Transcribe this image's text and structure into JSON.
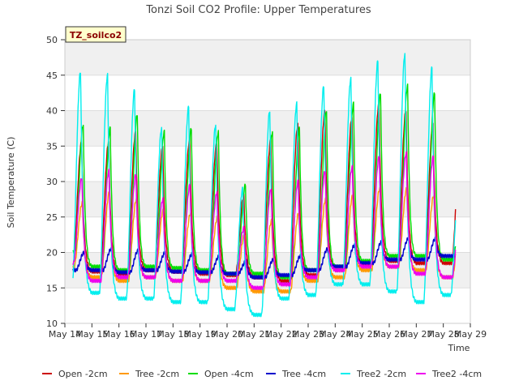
{
  "chart_data": {
    "type": "line",
    "title": "Tonzi Soil CO2 Profile: Upper Temperatures",
    "xlabel": "Time",
    "ylabel": "Soil Temperature (C)",
    "tag": "TZ_soilco2",
    "ylim": [
      10,
      50
    ],
    "yticks": [
      10,
      15,
      20,
      25,
      30,
      35,
      40,
      45,
      50
    ],
    "xlim": [
      14,
      29
    ],
    "xticks": [
      14,
      15,
      16,
      17,
      18,
      19,
      20,
      21,
      22,
      23,
      24,
      25,
      26,
      27,
      28,
      29
    ],
    "xtick_labels": [
      "May 14",
      "May 15",
      "May 16",
      "May 17",
      "May 18",
      "May 19",
      "May 20",
      "May 21",
      "May 22",
      "May 23",
      "May 24",
      "May 25",
      "May 26",
      "May 27",
      "May 28",
      "May 29"
    ],
    "grid": "horizontal bands",
    "legend_position": "bottom",
    "day_starts": [
      14,
      15,
      16,
      17,
      18,
      19,
      20,
      21,
      22,
      23,
      24,
      25,
      26,
      27,
      28
    ],
    "data_start": 14.3,
    "data_end": 28.45,
    "series": [
      {
        "name": "Open -2cm",
        "color": "#cc0000",
        "peak_phase": 0.62,
        "mins": [
          18.5,
          17.3,
          17.0,
          17.5,
          17.3,
          17.0,
          16.8,
          16.5,
          16.0,
          16.8,
          17.5,
          18.3,
          18.8,
          18.5,
          18.5,
          19.5
        ],
        "maxs": [
          35.5,
          35.5,
          37.0,
          35.0,
          36.0,
          35.5,
          28.0,
          36.0,
          38.0,
          40.0,
          39.0,
          41.0,
          40.0,
          38.0,
          34.0
        ]
      },
      {
        "name": "Tree -2cm",
        "color": "#ff9900",
        "peak_phase": 0.65,
        "mins": [
          18.0,
          16.5,
          16.0,
          16.5,
          16.0,
          16.0,
          15.0,
          14.5,
          14.5,
          16.0,
          16.5,
          17.5,
          18.0,
          17.5,
          16.5,
          18.5
        ],
        "maxs": [
          27.0,
          28.5,
          27.5,
          26.0,
          25.5,
          25.0,
          22.5,
          24.5,
          25.5,
          27.5,
          28.0,
          29.0,
          29.0,
          28.0,
          26.0
        ]
      },
      {
        "name": "Open -4cm",
        "color": "#00dd00",
        "peak_phase": 0.68,
        "mins": [
          20.0,
          18.0,
          17.5,
          18.0,
          17.8,
          17.5,
          17.0,
          17.0,
          16.5,
          17.5,
          18.0,
          18.8,
          19.5,
          19.5,
          19.0,
          20.0
        ],
        "maxs": [
          38.0,
          37.5,
          39.5,
          37.0,
          37.5,
          37.0,
          29.5,
          37.0,
          37.5,
          40.0,
          41.0,
          42.5,
          43.5,
          42.5,
          29.0
        ]
      },
      {
        "name": "Tree -4cm",
        "color": "#0000cc",
        "peak_phase": 0.72,
        "mins": [
          17.5,
          17.5,
          17.2,
          17.5,
          17.3,
          17.2,
          17.0,
          16.5,
          16.8,
          17.5,
          18.0,
          18.5,
          19.0,
          19.0,
          19.5,
          19.5
        ],
        "maxs": [
          20.0,
          20.5,
          20.3,
          20.0,
          19.8,
          19.5,
          18.8,
          19.0,
          19.5,
          20.5,
          21.0,
          21.5,
          22.0,
          22.0,
          21.5
        ]
      },
      {
        "name": "Tree2 -2cm",
        "color": "#00eeee",
        "peak_phase": 0.58,
        "mins": [
          15.5,
          14.3,
          13.5,
          13.5,
          13.0,
          13.0,
          12.0,
          11.2,
          13.5,
          14.0,
          15.5,
          15.5,
          14.5,
          13.0,
          14.0,
          15.5
        ],
        "maxs": [
          45.5,
          45.0,
          43.0,
          37.5,
          40.5,
          38.0,
          29.0,
          40.0,
          41.0,
          43.5,
          44.5,
          47.0,
          48.0,
          46.0,
          30.0
        ]
      },
      {
        "name": "Tree2 -4cm",
        "color": "#ee00ee",
        "peak_phase": 0.63,
        "mins": [
          18.5,
          16.0,
          16.5,
          16.5,
          16.0,
          16.0,
          16.0,
          15.0,
          15.5,
          16.5,
          17.5,
          18.0,
          18.0,
          17.0,
          16.5,
          17.5
        ],
        "maxs": [
          30.5,
          31.5,
          31.0,
          27.5,
          29.5,
          28.5,
          23.5,
          29.0,
          30.0,
          31.5,
          32.0,
          33.5,
          34.0,
          33.5,
          25.0
        ]
      }
    ]
  }
}
